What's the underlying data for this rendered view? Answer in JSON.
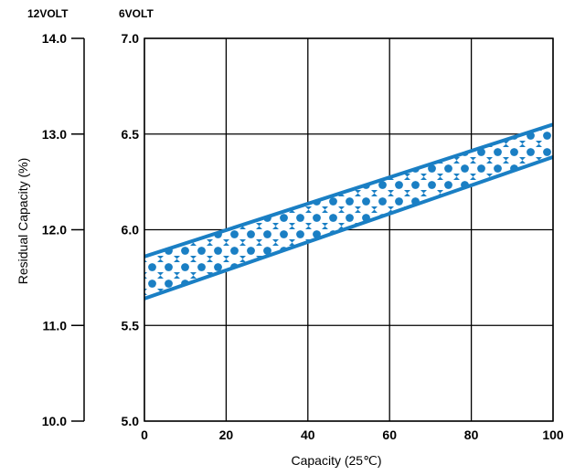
{
  "chart_data": {
    "type": "area",
    "title": "",
    "xlabel": "Capacity (25℃)",
    "ylabel": "Residual Capacity (%)",
    "secondary_axis_header": "12VOLT",
    "primary_axis_header": "6VOLT",
    "xlim": [
      0,
      100
    ],
    "ylim": [
      5.0,
      7.0
    ],
    "secondary_ylim": [
      10.0,
      14.0
    ],
    "x_ticks": [
      "0",
      "20",
      "40",
      "60",
      "80",
      "100"
    ],
    "y_ticks": [
      "5.0",
      "5.5",
      "6.0",
      "6.5",
      "7.0"
    ],
    "secondary_y_ticks": [
      "10.0",
      "11.0",
      "12.0",
      "13.0",
      "14.0"
    ],
    "grid": true,
    "band": {
      "x": [
        0,
        100
      ],
      "upper": [
        5.86,
        6.55
      ],
      "lower": [
        5.64,
        6.38
      ]
    },
    "band_color": "#1a7fc4"
  }
}
